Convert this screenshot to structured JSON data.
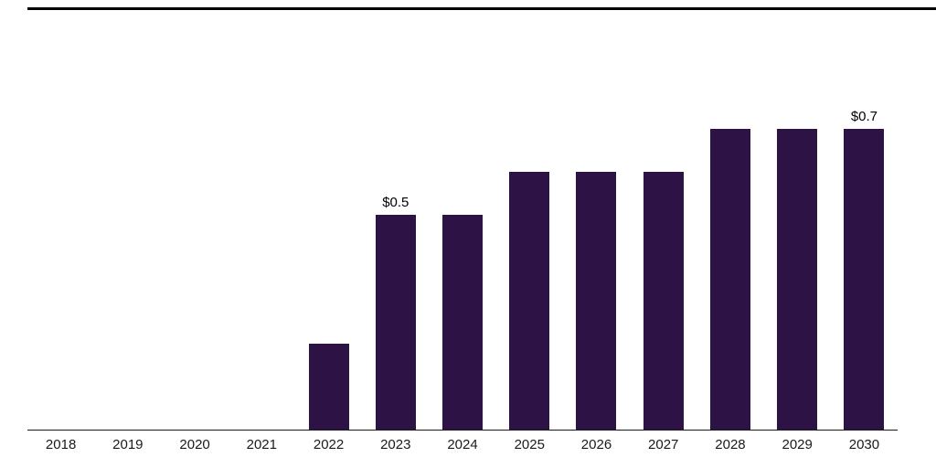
{
  "page": {
    "background": "#ffffff",
    "top_rule_color": "#000000"
  },
  "chart_data": {
    "type": "bar",
    "title": "",
    "xlabel": "",
    "ylabel": "",
    "categories": [
      "2018",
      "2019",
      "2020",
      "2021",
      "2022",
      "2023",
      "2024",
      "2025",
      "2026",
      "2027",
      "2028",
      "2029",
      "2030"
    ],
    "values": [
      0,
      0,
      0,
      0,
      0.2,
      0.5,
      0.5,
      0.6,
      0.6,
      0.6,
      0.7,
      0.7,
      0.7
    ],
    "bar_labels": [
      "",
      "",
      "",
      "",
      "",
      "$0.5",
      "",
      "",
      "",
      "",
      "",
      "",
      "$0.7"
    ],
    "bar_color": "#2d1245",
    "axis_color": "#1a1a1a",
    "ylim": [
      0,
      1.0
    ],
    "grid": false,
    "legend": false
  }
}
